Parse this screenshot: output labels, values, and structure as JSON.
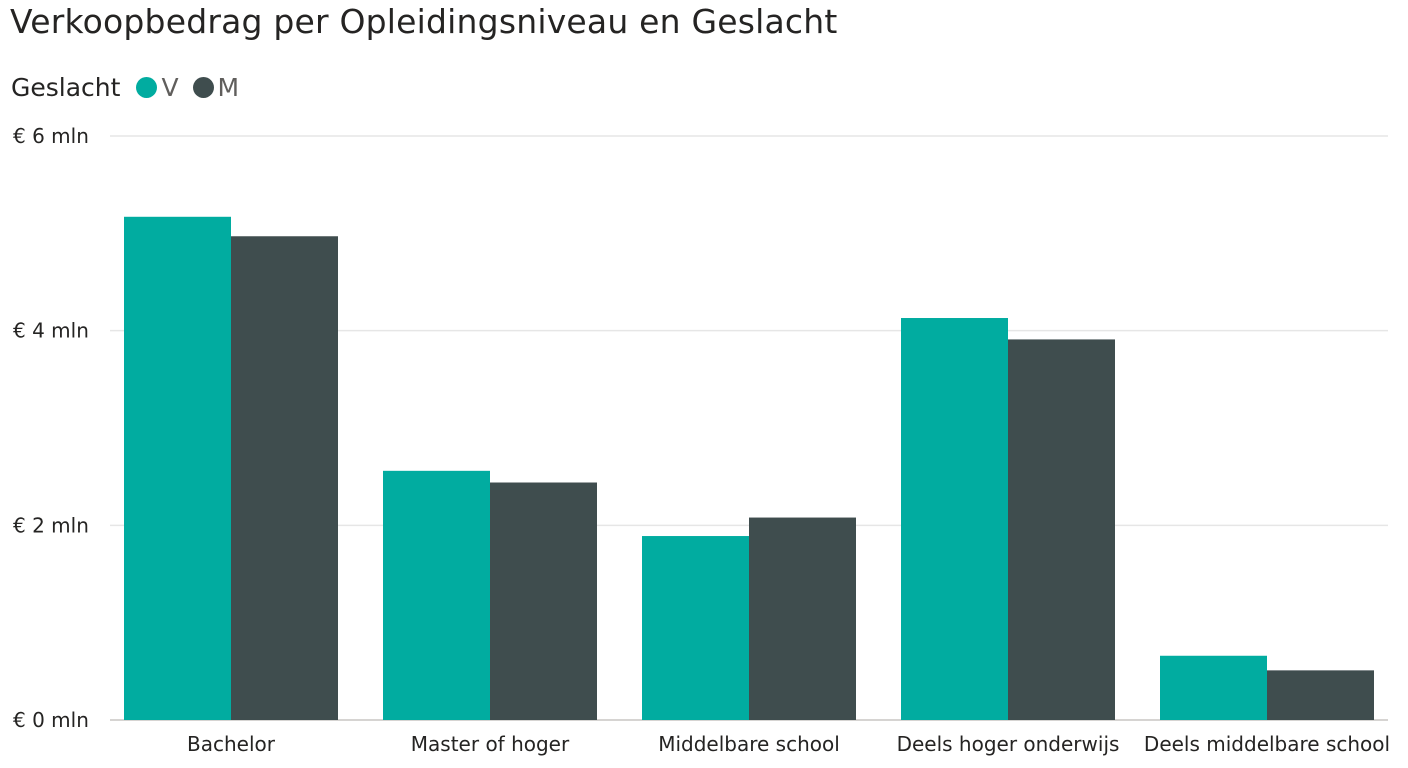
{
  "chart_data": {
    "type": "bar",
    "title": "Verkoopbedrag per Opleidingsniveau en Geslacht",
    "legend": {
      "title": "Geslacht",
      "placement": "top-left"
    },
    "categories": [
      "Bachelor",
      "Master of hoger",
      "Middelbare school",
      "Deels hoger onderwijs",
      "Deels middelbare school"
    ],
    "series": [
      {
        "name": "V",
        "color": "#01ACA0",
        "values": [
          5.17,
          2.56,
          1.89,
          4.13,
          0.66
        ]
      },
      {
        "name": "M",
        "color": "#3F4D4E",
        "values": [
          4.97,
          2.44,
          2.08,
          3.91,
          0.51
        ]
      }
    ],
    "unit": "mln",
    "ylim": [
      0,
      6
    ],
    "yticks": [
      {
        "value": 0,
        "label": "€ 0 mln"
      },
      {
        "value": 2,
        "label": "€ 2 mln"
      },
      {
        "value": 4,
        "label": "€ 4 mln"
      },
      {
        "value": 6,
        "label": "€ 6 mln"
      }
    ],
    "grid": true,
    "xlabel": "",
    "ylabel": ""
  }
}
